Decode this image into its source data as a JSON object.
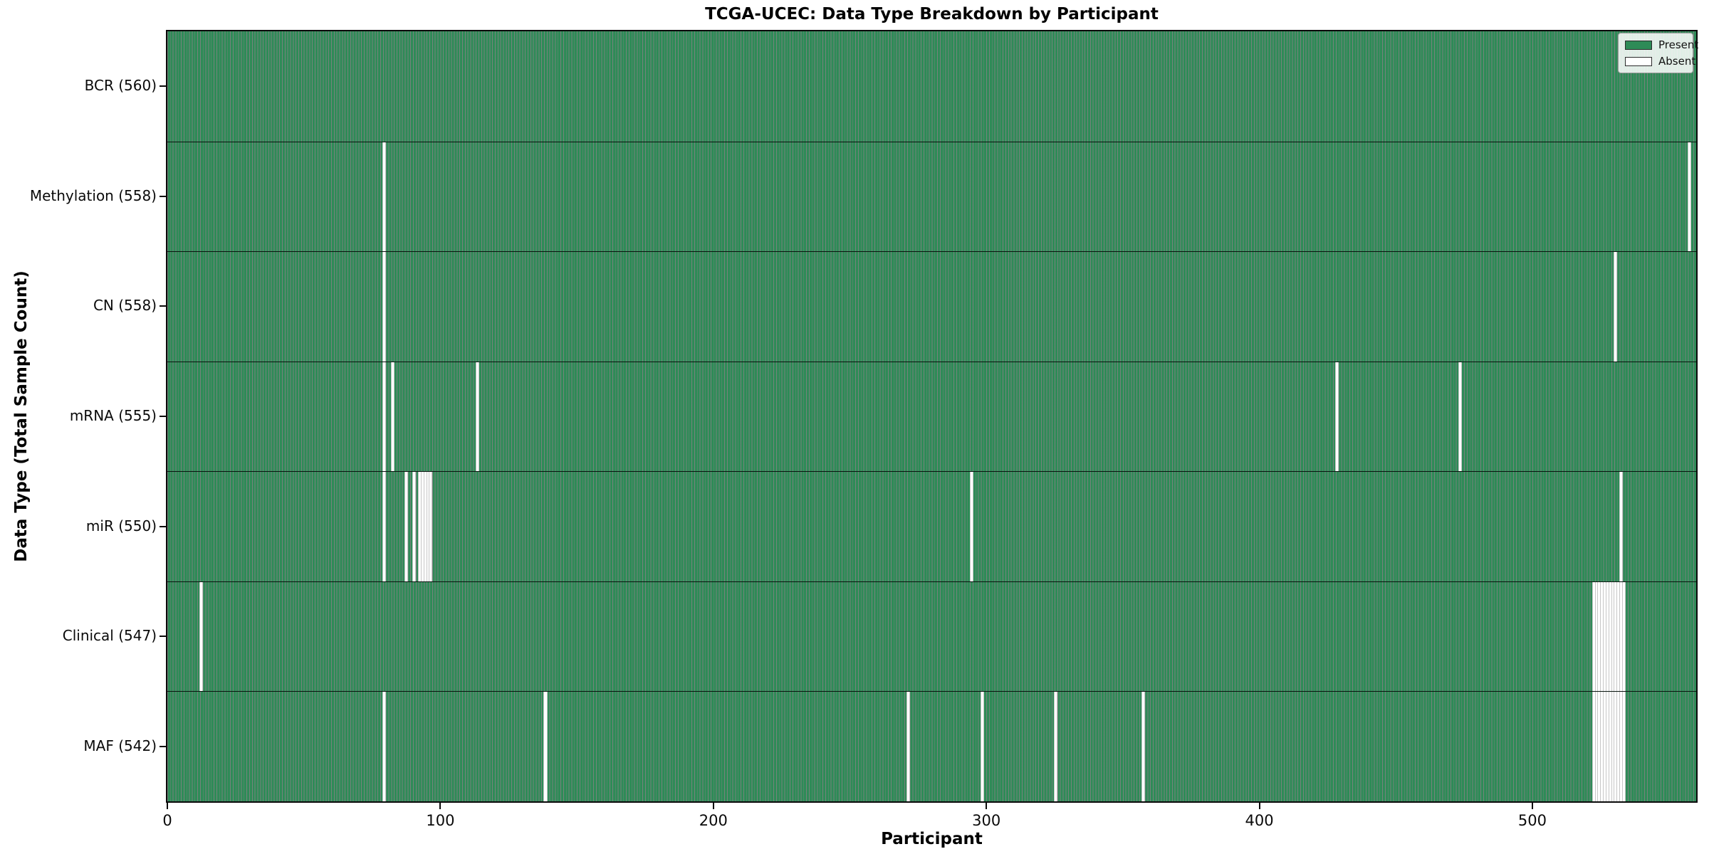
{
  "chart_data": {
    "type": "heatmap",
    "title": "TCGA-UCEC: Data Type Breakdown by Participant",
    "xlabel": "Participant",
    "ylabel": "Data Type (Total Sample Count)",
    "x_ticks": [
      0,
      100,
      200,
      300,
      400,
      500
    ],
    "x_max": 560,
    "n_participants": 560,
    "grid": false,
    "legend_position": "upper right",
    "legend": [
      {
        "label": "Present",
        "color": "#2e8b57"
      },
      {
        "label": "Absent",
        "color": "#ffffff"
      }
    ],
    "colors": {
      "present_fill": "#2e8b57",
      "cell_edge": "rgba(5,30,18,0.55)",
      "absent_fill": "#ffffff",
      "absent_edge": "#c6c6c6",
      "row_divider": "rgba(0,0,0,0.85)"
    },
    "rows": [
      {
        "data_type": "BCR",
        "label": "BCR (560)",
        "total": 560,
        "absent_participants": []
      },
      {
        "data_type": "Methylation",
        "label": "Methylation (558)",
        "total": 558,
        "absent_participants": [
          79,
          557
        ]
      },
      {
        "data_type": "CN",
        "label": "CN (558)",
        "total": 558,
        "absent_participants": [
          79,
          530
        ]
      },
      {
        "data_type": "mRNA",
        "label": "mRNA (555)",
        "total": 555,
        "absent_participants": [
          79,
          82,
          113,
          428,
          473
        ]
      },
      {
        "data_type": "miR",
        "label": "miR (550)",
        "total": 550,
        "absent_participants": [
          79,
          87,
          90,
          92,
          93,
          94,
          95,
          96,
          294,
          532
        ]
      },
      {
        "data_type": "Clinical",
        "label": "Clinical (547)",
        "total": 547,
        "absent_participants": [
          12,
          522,
          523,
          524,
          525,
          526,
          527,
          528,
          529,
          530,
          531,
          532,
          533
        ]
      },
      {
        "data_type": "MAF",
        "label": "MAF (542)",
        "total": 542,
        "absent_participants": [
          79,
          138,
          271,
          298,
          325,
          357,
          522,
          523,
          524,
          525,
          526,
          527,
          528,
          529,
          530,
          531,
          532,
          533
        ]
      }
    ]
  }
}
